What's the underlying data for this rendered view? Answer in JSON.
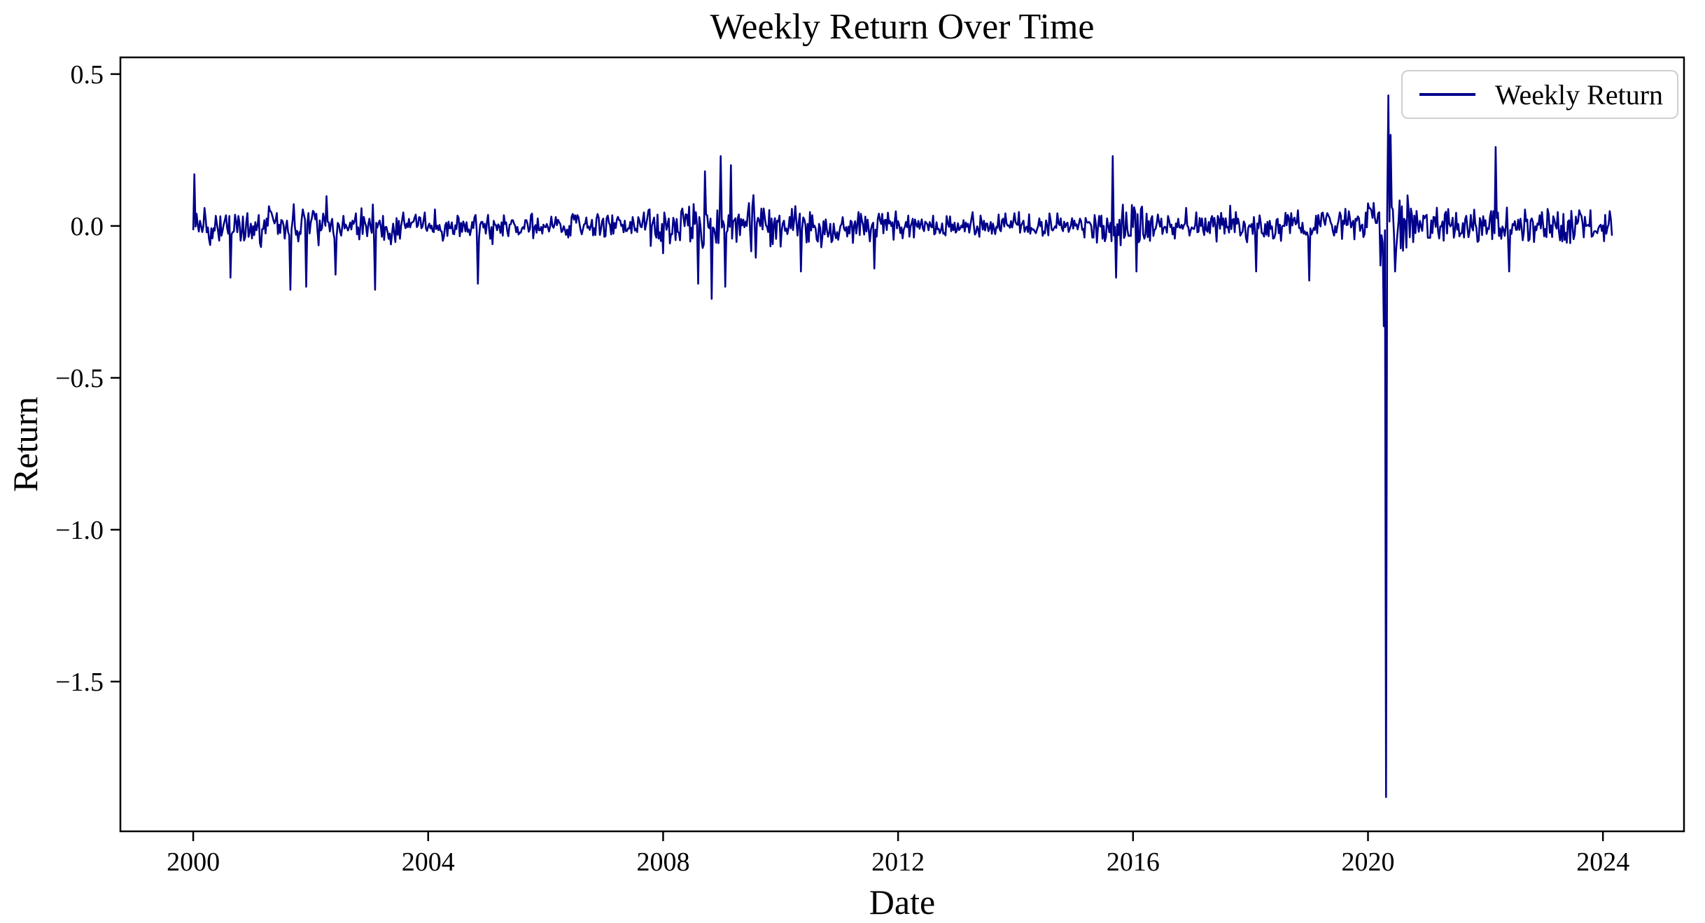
{
  "chart_data": {
    "type": "line",
    "title": "Weekly Return Over Time",
    "xlabel": "Date",
    "ylabel": "Return",
    "grid": false,
    "background": "#ffffff",
    "spine_color": "#000000",
    "xlim": [
      1998.76,
      2025.38
    ],
    "ylim": [
      -1.993,
      0.555
    ],
    "x_ticks": [
      2000,
      2004,
      2008,
      2012,
      2016,
      2020,
      2024
    ],
    "x_tick_labels": [
      "2000",
      "2004",
      "2008",
      "2012",
      "2016",
      "2020",
      "2024"
    ],
    "y_ticks": [
      0.5,
      0.0,
      -0.5,
      -1.0,
      -1.5
    ],
    "y_tick_labels": [
      "0.5",
      "0.0",
      "−0.5",
      "−1.0",
      "−1.5"
    ],
    "legend": {
      "position": "upper right",
      "border_color": "#cfcfcf",
      "entries": [
        {
          "label": "Weekly Return",
          "color": "#00008B"
        }
      ]
    },
    "series": [
      {
        "name": "Weekly Return",
        "color": "#00008B",
        "line_width": 2.6,
        "sampling": "weekly",
        "points_per_year": 52,
        "x_start": 2000.0,
        "x_end": 2024.15,
        "baseline_mean": 0.0,
        "seed": 20240407,
        "observed_min": {
          "x": 2020.3,
          "y": -1.88
        },
        "observed_max": {
          "x": 2020.34,
          "y": 0.43
        },
        "volatility_segments": [
          {
            "from": 2000.0,
            "to": 2003.6,
            "amp": 0.085
          },
          {
            "from": 2003.6,
            "to": 2007.6,
            "amp": 0.06
          },
          {
            "from": 2007.6,
            "to": 2009.6,
            "amp": 0.125
          },
          {
            "from": 2009.6,
            "to": 2011.9,
            "amp": 0.08
          },
          {
            "from": 2011.9,
            "to": 2015.3,
            "amp": 0.055
          },
          {
            "from": 2015.3,
            "to": 2016.4,
            "amp": 0.095
          },
          {
            "from": 2016.4,
            "to": 2019.9,
            "amp": 0.07
          },
          {
            "from": 2019.9,
            "to": 2020.7,
            "amp": 0.11
          },
          {
            "from": 2020.7,
            "to": 2021.8,
            "amp": 0.08
          },
          {
            "from": 2021.8,
            "to": 2024.2,
            "amp": 0.085
          }
        ],
        "anomalies": [
          {
            "x": 2000.02,
            "y": 0.17
          },
          {
            "x": 2000.63,
            "y": -0.17
          },
          {
            "x": 2001.65,
            "y": -0.21
          },
          {
            "x": 2001.92,
            "y": -0.2
          },
          {
            "x": 2002.42,
            "y": -0.16
          },
          {
            "x": 2003.1,
            "y": -0.21
          },
          {
            "x": 2004.85,
            "y": -0.19
          },
          {
            "x": 2008.6,
            "y": -0.19
          },
          {
            "x": 2008.72,
            "y": 0.18
          },
          {
            "x": 2008.82,
            "y": -0.24
          },
          {
            "x": 2008.98,
            "y": 0.23
          },
          {
            "x": 2009.06,
            "y": -0.2
          },
          {
            "x": 2009.16,
            "y": 0.2
          },
          {
            "x": 2010.35,
            "y": -0.15
          },
          {
            "x": 2011.6,
            "y": -0.14
          },
          {
            "x": 2015.65,
            "y": 0.23
          },
          {
            "x": 2015.72,
            "y": -0.17
          },
          {
            "x": 2016.05,
            "y": -0.15
          },
          {
            "x": 2018.1,
            "y": -0.15
          },
          {
            "x": 2019.0,
            "y": -0.18
          },
          {
            "x": 2020.22,
            "y": -0.13
          },
          {
            "x": 2020.26,
            "y": -0.33
          },
          {
            "x": 2020.3,
            "y": -1.88
          },
          {
            "x": 2020.34,
            "y": 0.43
          },
          {
            "x": 2020.38,
            "y": 0.3
          },
          {
            "x": 2020.46,
            "y": -0.15
          },
          {
            "x": 2022.18,
            "y": 0.26
          },
          {
            "x": 2022.4,
            "y": -0.15
          }
        ]
      }
    ]
  }
}
